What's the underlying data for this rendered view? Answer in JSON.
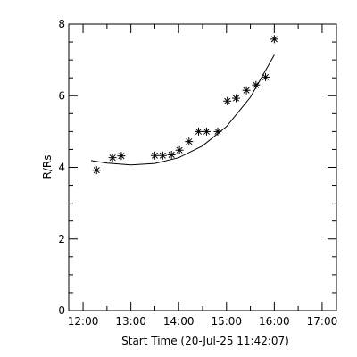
{
  "chart_data": {
    "type": "scatter",
    "xlabel": "Start Time (20-Jul-25 11:42:07)",
    "ylabel": "R/Rs",
    "xticks": [
      "12:00",
      "13:00",
      "14:00",
      "15:00",
      "16:00",
      "17:00"
    ],
    "xtick_hours": [
      12,
      13,
      14,
      15,
      16,
      17
    ],
    "xlim_hours": [
      11.7,
      17.3
    ],
    "yticks": [
      "0",
      "2",
      "4",
      "6",
      "8"
    ],
    "ytick_values": [
      0,
      2,
      4,
      6,
      8
    ],
    "ylim": [
      0,
      8
    ],
    "grid": false,
    "marker": "asterisk",
    "series": [
      {
        "x": [
          "12:17",
          "12:37",
          "12:48",
          "13:30",
          "13:40",
          "13:51",
          "14:01",
          "14:13",
          "14:25",
          "14:35",
          "14:49",
          "15:01",
          "15:12",
          "15:25",
          "15:37",
          "15:49",
          "16:00"
        ],
        "y": [
          3.92,
          4.27,
          4.32,
          4.33,
          4.33,
          4.35,
          4.48,
          4.72,
          5.0,
          5.0,
          5.0,
          5.85,
          5.93,
          6.15,
          6.3,
          6.52,
          7.58
        ]
      }
    ],
    "fit": {
      "x": [
        "12:10",
        "12:30",
        "13:00",
        "13:30",
        "14:00",
        "14:30",
        "15:00",
        "15:30",
        "16:00"
      ],
      "y": [
        4.19,
        4.12,
        4.07,
        4.11,
        4.27,
        4.6,
        5.14,
        5.96,
        7.14
      ]
    }
  }
}
